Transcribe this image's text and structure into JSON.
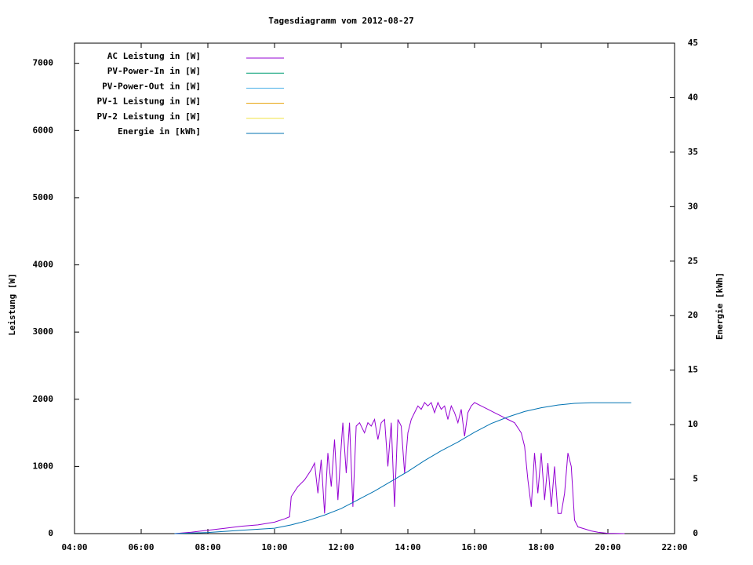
{
  "chart_data": {
    "type": "line",
    "title": "Tagesdiagramm vom 2012-08-27",
    "ylabel": "Leistung [W]",
    "y2label": "Energie [kWh]",
    "xlim": [
      4,
      22
    ],
    "xticks": [
      {
        "value": 4,
        "label": "04:00"
      },
      {
        "value": 6,
        "label": "06:00"
      },
      {
        "value": 8,
        "label": "08:00"
      },
      {
        "value": 10,
        "label": "10:00"
      },
      {
        "value": 12,
        "label": "12:00"
      },
      {
        "value": 14,
        "label": "14:00"
      },
      {
        "value": 16,
        "label": "16:00"
      },
      {
        "value": 18,
        "label": "18:00"
      },
      {
        "value": 20,
        "label": "20:00"
      },
      {
        "value": 22,
        "label": "22:00"
      }
    ],
    "ylim": [
      0,
      7300
    ],
    "yticks": [
      0,
      1000,
      2000,
      3000,
      4000,
      5000,
      6000,
      7000
    ],
    "y2lim": [
      0,
      45
    ],
    "y2ticks": [
      0,
      5,
      10,
      15,
      20,
      25,
      30,
      35,
      40,
      45
    ],
    "grid": false,
    "legend": "top-left",
    "series": [
      {
        "name": "AC Leistung in [W]",
        "color": "#9400d3",
        "x": [
          7.0,
          7.5,
          8.0,
          8.5,
          9.0,
          9.5,
          10.0,
          10.3,
          10.45,
          10.5,
          10.7,
          10.9,
          11.1,
          11.2,
          11.3,
          11.4,
          11.5,
          11.6,
          11.7,
          11.8,
          11.9,
          12.0,
          12.05,
          12.15,
          12.25,
          12.35,
          12.45,
          12.55,
          12.7,
          12.8,
          12.9,
          13.0,
          13.1,
          13.2,
          13.3,
          13.4,
          13.5,
          13.6,
          13.7,
          13.8,
          13.9,
          14.0,
          14.1,
          14.2,
          14.3,
          14.4,
          14.5,
          14.6,
          14.7,
          14.8,
          14.9,
          15.0,
          15.1,
          15.2,
          15.3,
          15.4,
          15.5,
          15.6,
          15.7,
          15.8,
          15.9,
          16.0,
          16.2,
          16.4,
          16.6,
          16.8,
          17.0,
          17.2,
          17.4,
          17.5,
          17.6,
          17.7,
          17.8,
          17.9,
          18.0,
          18.1,
          18.2,
          18.3,
          18.4,
          18.5,
          18.6,
          18.7,
          18.8,
          18.9,
          19.0,
          19.1,
          19.3,
          19.5,
          19.7,
          20.0,
          20.5
        ],
        "values": [
          0,
          20,
          50,
          80,
          110,
          130,
          170,
          220,
          250,
          550,
          700,
          800,
          950,
          1050,
          600,
          1100,
          300,
          1200,
          700,
          1400,
          500,
          1300,
          1650,
          900,
          1650,
          400,
          1600,
          1650,
          1500,
          1650,
          1600,
          1700,
          1400,
          1650,
          1700,
          1000,
          1650,
          400,
          1700,
          1600,
          900,
          1500,
          1700,
          1800,
          1900,
          1850,
          1950,
          1900,
          1950,
          1800,
          1950,
          1850,
          1900,
          1700,
          1900,
          1800,
          1650,
          1850,
          1450,
          1800,
          1900,
          1950,
          1900,
          1850,
          1800,
          1750,
          1700,
          1650,
          1500,
          1300,
          800,
          400,
          1200,
          600,
          1200,
          500,
          1050,
          400,
          1000,
          300,
          300,
          600,
          1200,
          1000,
          200,
          100,
          70,
          40,
          20,
          5,
          0
        ]
      },
      {
        "name": "PV-Power-In in [W]",
        "color": "#009e73",
        "x": [],
        "values": []
      },
      {
        "name": "PV-Power-Out in [W]",
        "color": "#56b4e9",
        "x": [],
        "values": []
      },
      {
        "name": "PV-1 Leistung in [W]",
        "color": "#e69f00",
        "x": [],
        "values": []
      },
      {
        "name": "PV-2 Leistung in [W]",
        "color": "#f0e442",
        "x": [],
        "values": []
      },
      {
        "name": "Energie in [kWh]",
        "color": "#0072b2",
        "axis": "y2",
        "x": [
          7.0,
          8.0,
          9.0,
          10.0,
          10.5,
          11.0,
          11.5,
          12.0,
          12.5,
          13.0,
          13.5,
          14.0,
          14.5,
          15.0,
          15.5,
          16.0,
          16.5,
          17.0,
          17.5,
          18.0,
          18.5,
          19.0,
          19.5,
          20.0,
          20.7
        ],
        "values": [
          0,
          0.1,
          0.3,
          0.5,
          0.8,
          1.2,
          1.7,
          2.3,
          3.1,
          3.9,
          4.8,
          5.7,
          6.7,
          7.6,
          8.4,
          9.3,
          10.1,
          10.7,
          11.2,
          11.55,
          11.8,
          11.95,
          12.0,
          12.0,
          12.0
        ]
      }
    ]
  }
}
